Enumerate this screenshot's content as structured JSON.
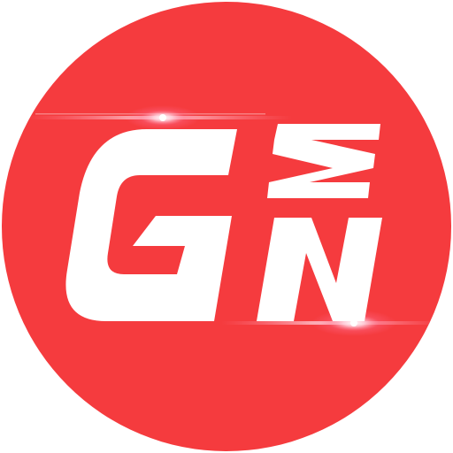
{
  "logo": {
    "brand_letters": "GMN",
    "background_color": "#f53b3e",
    "glyph_color": "#ffffff",
    "flare_color": "#ff6a8a"
  }
}
